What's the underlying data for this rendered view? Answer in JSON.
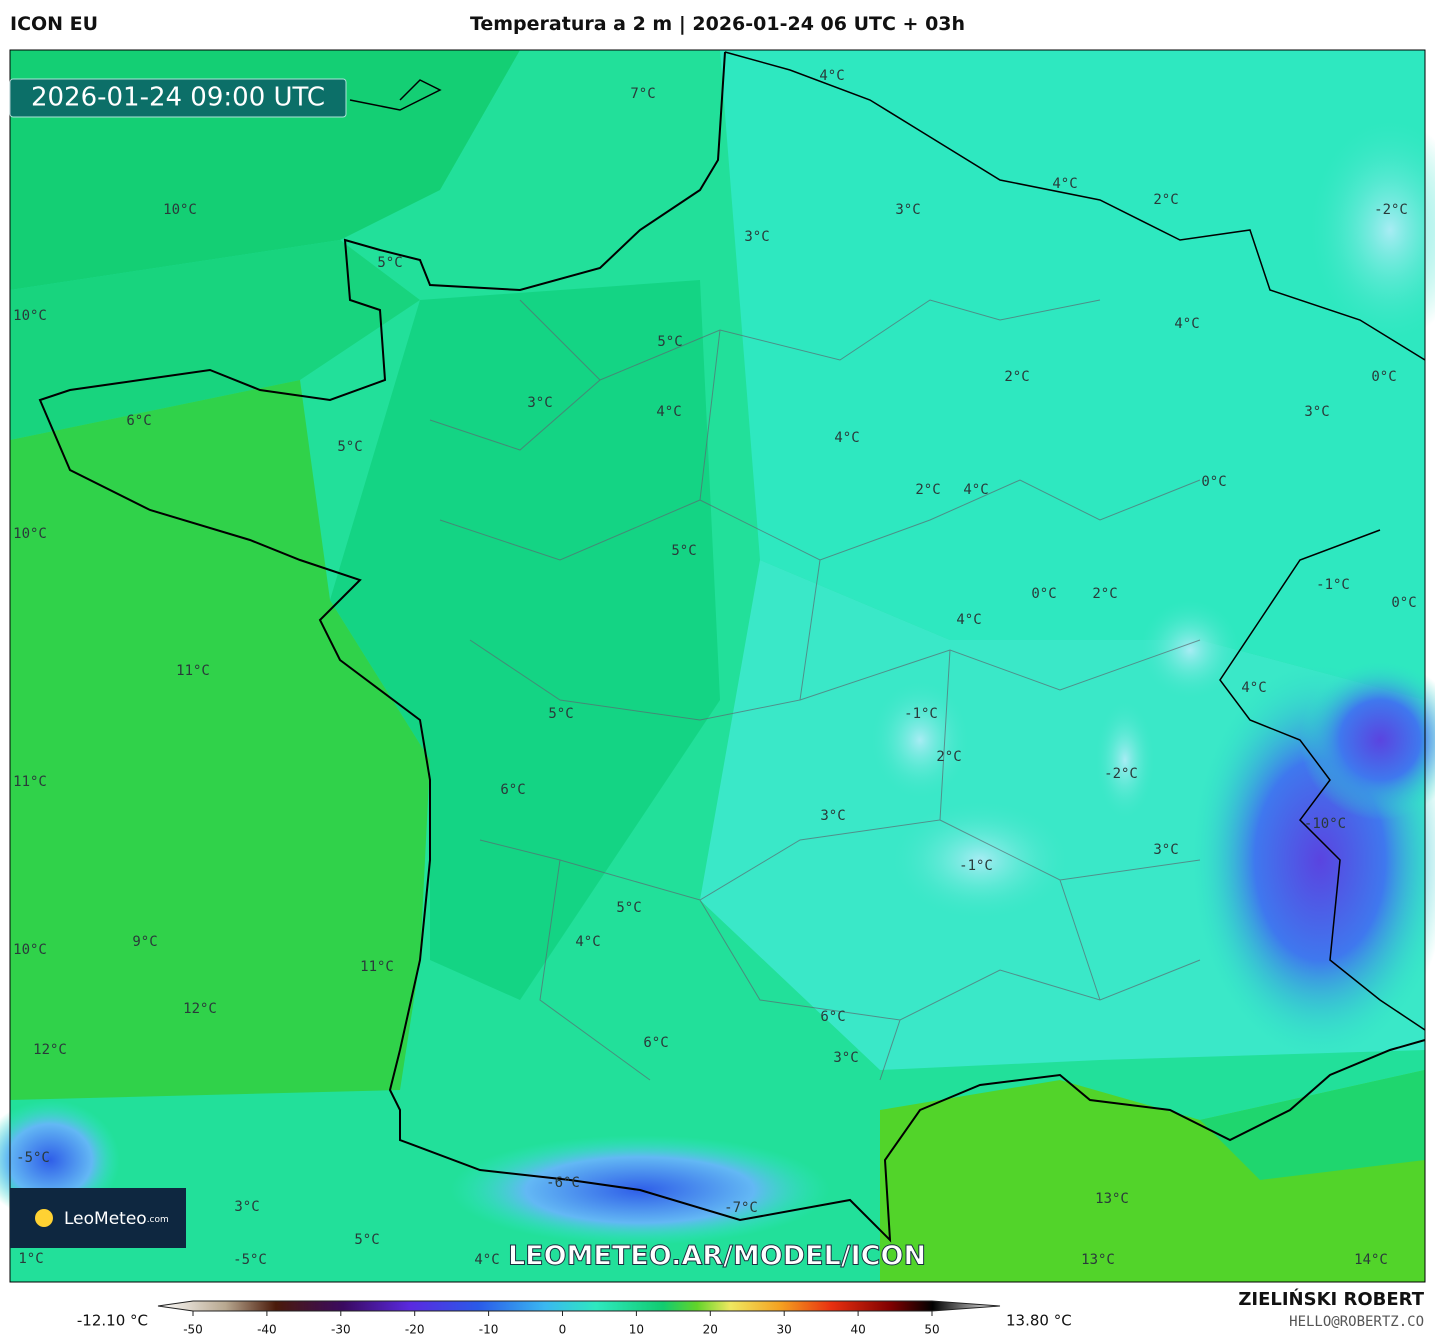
{
  "header": {
    "model": "ICON EU",
    "title": "Temperatura a 2 m | 2026-01-24 06 UTC + 03h",
    "author": "ZIELIŃSKI ROBERT",
    "email": "HELLO@ROBERTZ.CO"
  },
  "map": {
    "valid_time": "2026-01-24 09:00 UTC",
    "watermark": "LEOMETEO.AR/MODEL/ICON",
    "logo": "LeoMeteo",
    "logo_suffix": ".com",
    "labels": [
      "7°C",
      "4°C",
      "10°C",
      "3°C",
      "4°C",
      "2°C",
      "-2°C",
      "3°C",
      "5°C",
      "10°C",
      "4°C",
      "5°C",
      "2°C",
      "0°C",
      "3°C",
      "4°C",
      "3°C",
      "6°C",
      "4°C",
      "5°C",
      "0°C",
      "2°C",
      "4°C",
      "10°C",
      "5°C",
      "0°C",
      "2°C",
      "-1°C",
      "0°C",
      "4°C",
      "11°C",
      "4°C",
      "-1°C",
      "5°C",
      "2°C",
      "-2°C",
      "11°C",
      "6°C",
      "3°C",
      "-10°C",
      "3°C",
      "-1°C",
      "5°C",
      "4°C",
      "9°C",
      "10°C",
      "11°C",
      "12°C",
      "6°C",
      "6°C",
      "12°C",
      "3°C",
      "-5°C",
      "-6°C",
      "13°C",
      "3°C",
      "-7°C",
      "5°C",
      "1°C",
      "-5°C",
      "4°C",
      "13°C",
      "14°C"
    ]
  },
  "colorbar": {
    "min_label": "-12.10 °C",
    "max_label": "13.80 °C",
    "ticks": [
      -50,
      -40,
      -30,
      -20,
      -10,
      0,
      10,
      20,
      30,
      40,
      50
    ]
  }
}
